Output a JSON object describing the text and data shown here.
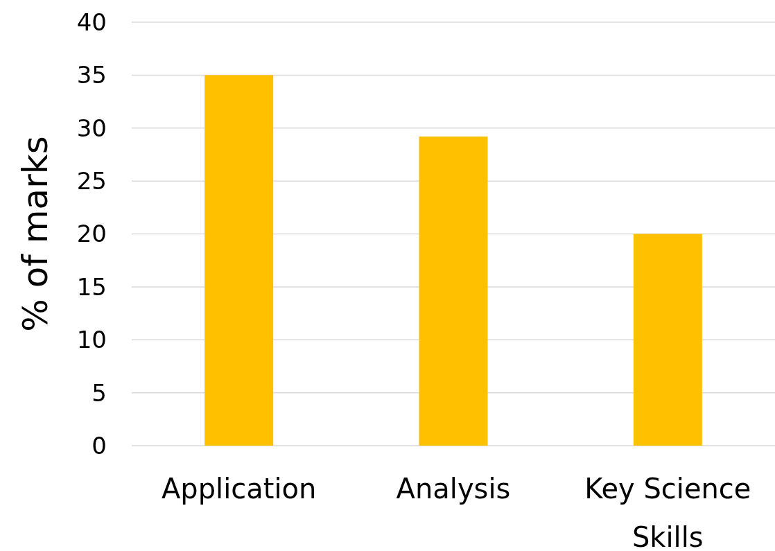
{
  "chart_data": {
    "type": "bar",
    "ylabel": "% of marks",
    "categories": [
      "Application",
      "Analysis",
      "Key Science Skills"
    ],
    "values": [
      35,
      29.2,
      20
    ],
    "color": "#ffc000",
    "ylim": [
      0,
      40
    ],
    "yticks": [
      0,
      5,
      10,
      15,
      20,
      25,
      30,
      35,
      40
    ],
    "grid": "y"
  }
}
